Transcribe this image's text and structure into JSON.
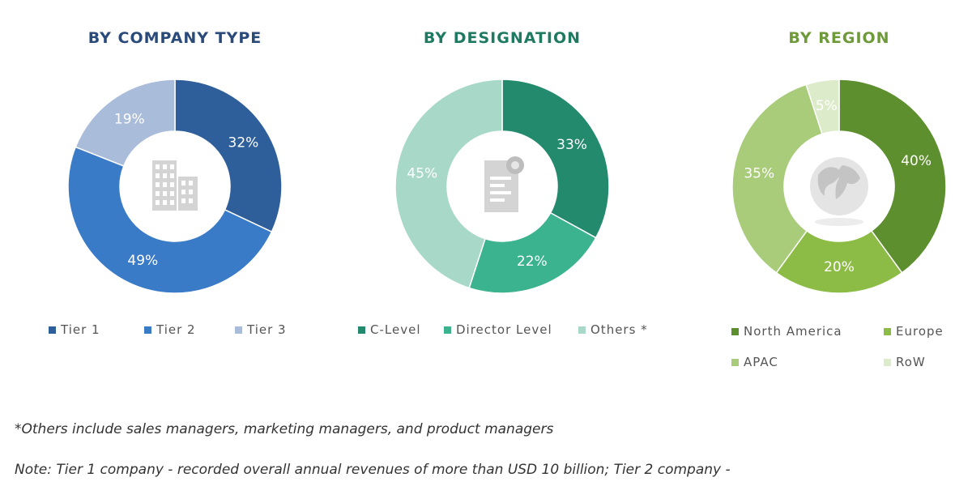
{
  "chart_data": [
    {
      "type": "pie",
      "title": "BY COMPANY TYPE",
      "categories": [
        "Tier 1",
        "Tier 2",
        "Tier 3"
      ],
      "values": [
        32,
        49,
        19
      ],
      "value_labels": [
        "32%",
        "49%",
        "19%"
      ],
      "colors": [
        "#2e5f9a",
        "#3a7bc8",
        "#a9bcd9"
      ],
      "title_color": "#2a4a7a",
      "legend_position": "bottom",
      "donut": true,
      "center_icon": "building-icon"
    },
    {
      "type": "pie",
      "title": "BY DESIGNATION",
      "categories": [
        "C-Level",
        "Director Level",
        "Others *"
      ],
      "values": [
        33,
        22,
        45
      ],
      "value_labels": [
        "33%",
        "22%",
        "45%"
      ],
      "colors": [
        "#238a6e",
        "#3bb38e",
        "#a8d8c8"
      ],
      "title_color": "#1f7a62",
      "legend_position": "bottom",
      "donut": true,
      "center_icon": "document-icon"
    },
    {
      "type": "pie",
      "title": "BY REGION",
      "categories": [
        "North America",
        "Europe",
        "APAC",
        "RoW"
      ],
      "values": [
        40,
        20,
        35,
        5
      ],
      "value_labels": [
        "40%",
        "20%",
        "35%",
        "5%"
      ],
      "colors": [
        "#5e8f2e",
        "#8cbc45",
        "#a9cc7a",
        "#dcebc9"
      ],
      "title_color": "#6f9a3a",
      "legend_position": "bottom",
      "donut": true,
      "center_icon": "globe-icon"
    }
  ],
  "footnotes": {
    "others": "*Others include sales managers, marketing managers, and product managers",
    "note": "Note: Tier 1 company - recorded overall annual revenues of more than USD 10 billion; Tier 2 company -"
  }
}
